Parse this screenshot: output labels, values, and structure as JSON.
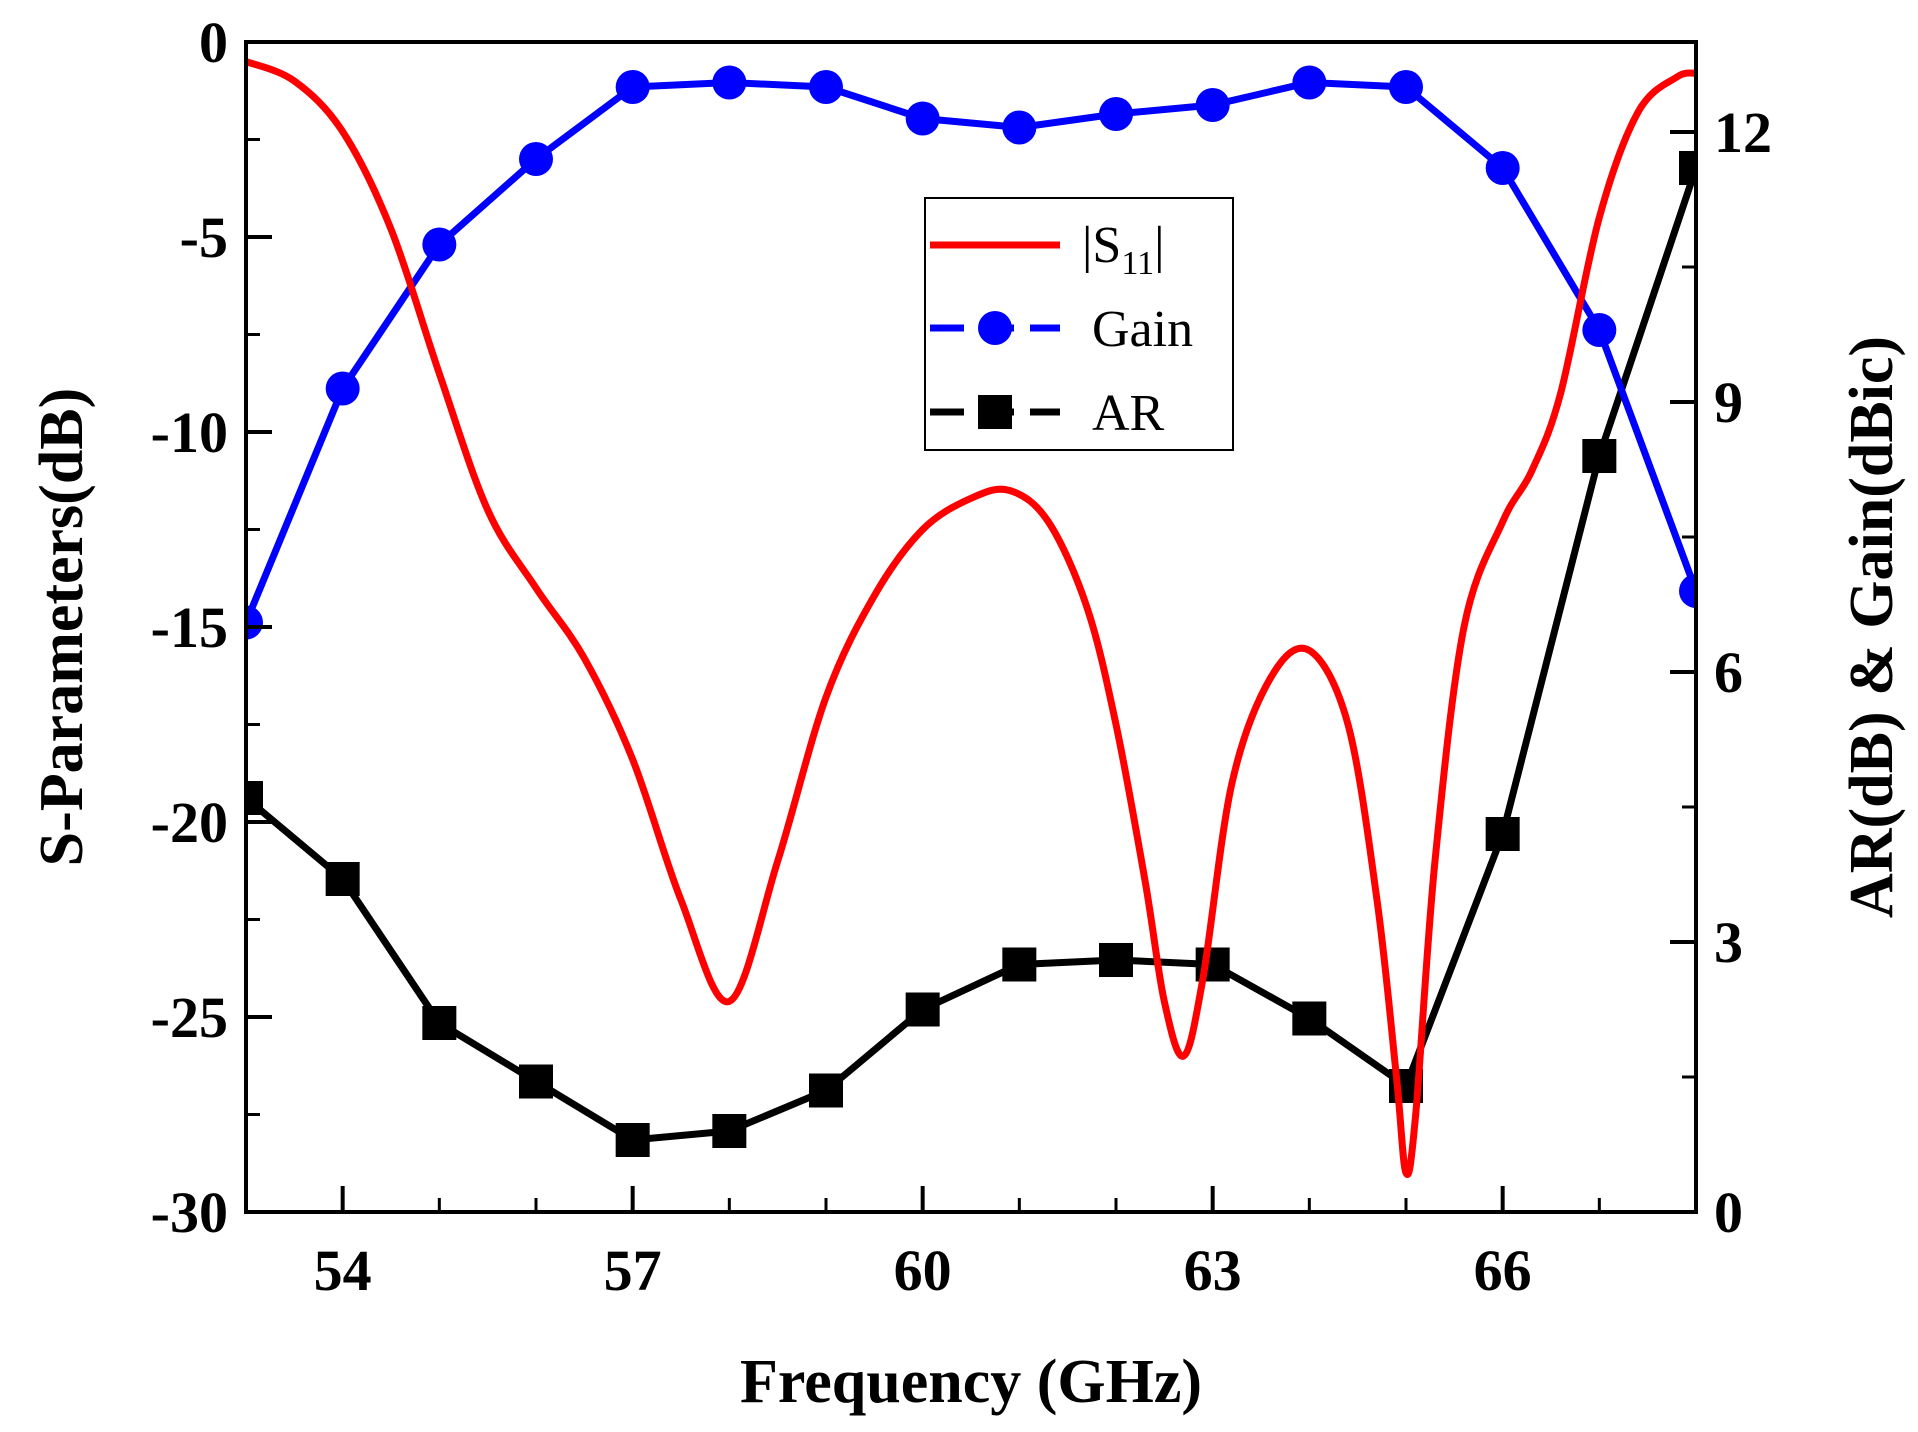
{
  "chart_data": {
    "type": "line",
    "xlabel": "Frequency (GHz)",
    "ylabel_left": "S-Parameters(dB)",
    "ylabel_right": "AR(dB) & Gain(dBic)",
    "xlim": [
      53,
      68
    ],
    "ylim_left": [
      -30,
      0
    ],
    "ylim_right": [
      0,
      13
    ],
    "x_ticks": [
      54,
      57,
      60,
      63,
      66
    ],
    "x_minor_ticks": [
      55,
      56,
      58,
      59,
      61,
      62,
      64,
      65,
      67
    ],
    "y_left_ticks": [
      0,
      -5,
      -10,
      -15,
      -20,
      -25,
      -30
    ],
    "y_left_tick_labels": [
      "0",
      "-5",
      "-10",
      "-15",
      "-20",
      "-25",
      "-30"
    ],
    "y_right_ticks": [
      0,
      3,
      6,
      9,
      12
    ],
    "y_right_tick_labels": [
      "0",
      "3",
      "6",
      "9",
      "12"
    ],
    "legend_position": "top-center",
    "series": [
      {
        "name": "|S11|",
        "label_main": "|S",
        "label_sub": "11",
        "label_end": "|",
        "axis": "left",
        "color": "#ff0000",
        "marker": "none",
        "x": [
          53,
          53.5,
          54,
          54.5,
          55,
          55.5,
          56,
          56.5,
          57,
          57.5,
          58,
          58.5,
          59,
          59.5,
          60,
          60.5,
          60.9,
          61.3,
          61.7,
          62,
          62.3,
          62.5,
          62.7,
          62.9,
          63.2,
          63.6,
          64,
          64.4,
          64.7,
          64.9,
          65,
          65.1,
          65.3,
          65.6,
          66,
          66.3,
          66.6,
          67,
          67.4,
          67.8,
          68
        ],
        "y": [
          -0.5,
          -1.0,
          -2.3,
          -4.8,
          -8.5,
          -12.0,
          -14.0,
          -15.8,
          -18.4,
          -22.0,
          -24.6,
          -21.0,
          -16.8,
          -14.2,
          -12.5,
          -11.7,
          -11.5,
          -12.3,
          -14.5,
          -17.5,
          -21.5,
          -24.6,
          -26.0,
          -24.0,
          -19.0,
          -16.3,
          -15.6,
          -17.5,
          -22.0,
          -26.5,
          -29.0,
          -27.5,
          -21.0,
          -15.0,
          -12.3,
          -11.0,
          -9.0,
          -4.5,
          -1.8,
          -0.9,
          -0.8
        ]
      },
      {
        "name": "Gain",
        "axis": "right",
        "color": "#0000ff",
        "marker": "circle",
        "x": [
          53,
          54,
          55,
          56,
          57,
          58,
          59,
          60,
          61,
          62,
          63,
          64,
          65,
          66,
          67,
          68
        ],
        "y": [
          6.55,
          9.15,
          10.75,
          11.7,
          12.5,
          12.55,
          12.5,
          12.15,
          12.05,
          12.2,
          12.3,
          12.55,
          12.5,
          11.6,
          9.8,
          6.9
        ]
      },
      {
        "name": "AR",
        "axis": "right",
        "color": "#000000",
        "marker": "square",
        "x": [
          53,
          54,
          55,
          56,
          57,
          58,
          59,
          60,
          61,
          62,
          63,
          64,
          65,
          66,
          67,
          68
        ],
        "y": [
          4.6,
          3.7,
          2.1,
          1.45,
          0.8,
          0.9,
          1.35,
          2.25,
          2.75,
          2.8,
          2.75,
          2.15,
          1.4,
          4.2,
          8.4,
          11.6
        ]
      }
    ]
  }
}
